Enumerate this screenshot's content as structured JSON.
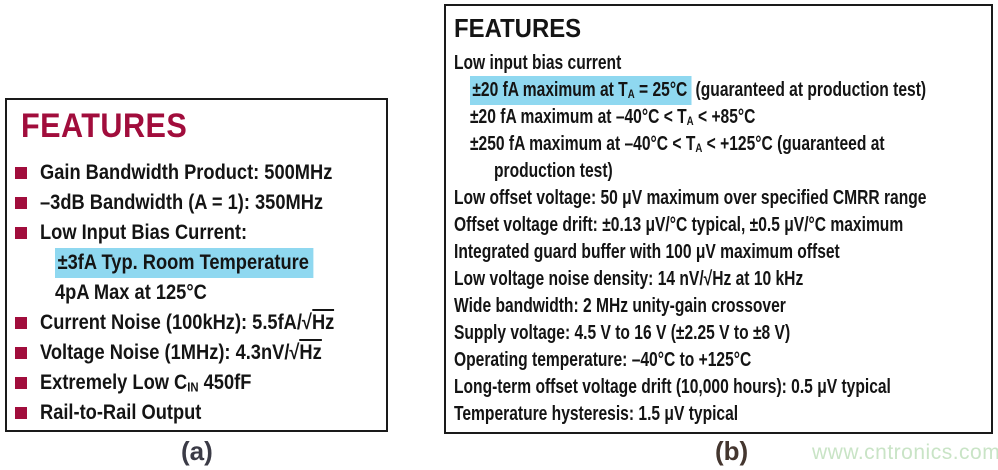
{
  "colors": {
    "accent_maroon": "#A10D3C",
    "highlight_cyan": "#8FD8F0",
    "border_black": "#1A1A1A",
    "text_black": "#141414",
    "caption_a_color": "#3B3B46",
    "caption_b_color": "#44362F",
    "watermark_green": "#C9E4C6"
  },
  "panel_a": {
    "title": "FEATURES",
    "caption": "(a)",
    "lines": [
      {
        "bullet": true,
        "segments": [
          {
            "t": "Gain Bandwidth Product: 500MHz"
          }
        ]
      },
      {
        "bullet": true,
        "segments": [
          {
            "t": "–3dB Bandwidth (A = 1): 350MHz"
          }
        ]
      },
      {
        "bullet": true,
        "segments": [
          {
            "t": "Low Input Bias Current:"
          }
        ]
      },
      {
        "indent": 1,
        "segments": [
          {
            "t": "±3fA Typ. Room Temperature",
            "hl": true
          }
        ]
      },
      {
        "indent": 1,
        "segments": [
          {
            "t": "4pA Max at 125°C"
          }
        ]
      },
      {
        "bullet": true,
        "segments": [
          {
            "t": "Current Noise (100kHz): 5.5fA/√"
          },
          {
            "t": "Hz",
            "ol": true
          }
        ]
      },
      {
        "bullet": true,
        "segments": [
          {
            "t": "Voltage Noise (1MHz): 4.3nV/√"
          },
          {
            "t": "Hz",
            "ol": true
          }
        ]
      },
      {
        "bullet": true,
        "segments": [
          {
            "t": "Extremely Low C"
          },
          {
            "t": "IN",
            "sub": true
          },
          {
            "t": " 450fF"
          }
        ]
      },
      {
        "bullet": true,
        "segments": [
          {
            "t": "Rail-to-Rail Output"
          }
        ]
      }
    ]
  },
  "panel_b": {
    "title": "FEATURES",
    "caption": "(b)",
    "lines": [
      {
        "segments": [
          {
            "t": "Low input bias current"
          }
        ]
      },
      {
        "indent": 1,
        "segments": [
          {
            "t": "±20 fA maximum at T",
            "hl": true
          },
          {
            "t": "A",
            "sub": true,
            "hl": true
          },
          {
            "t": " = 25°C",
            "hl": true
          },
          {
            "t": " (guaranteed at production test)"
          }
        ]
      },
      {
        "indent": 1,
        "segments": [
          {
            "t": "±20 fA maximum at –40°C < T"
          },
          {
            "t": "A",
            "sub": true
          },
          {
            "t": " < +85°C"
          }
        ]
      },
      {
        "indent": 1,
        "segments": [
          {
            "t": "±250 fA maximum at –40°C < T"
          },
          {
            "t": "A",
            "sub": true
          },
          {
            "t": " < +125°C (guaranteed at"
          }
        ]
      },
      {
        "indent": 2,
        "segments": [
          {
            "t": "production test)"
          }
        ]
      },
      {
        "segments": [
          {
            "t": "Low offset voltage: 50 μV maximum over specified CMRR range"
          }
        ]
      },
      {
        "segments": [
          {
            "t": "Offset voltage drift: ±0.13 μV/°C typical, ±0.5 μV/°C maximum"
          }
        ]
      },
      {
        "segments": [
          {
            "t": "Integrated guard buffer with 100 μV maximum offset"
          }
        ]
      },
      {
        "segments": [
          {
            "t": "Low voltage noise density: 14 nV/√Hz at 10 kHz"
          }
        ]
      },
      {
        "segments": [
          {
            "t": "Wide bandwidth: 2 MHz unity-gain crossover"
          }
        ]
      },
      {
        "segments": [
          {
            "t": "Supply voltage: 4.5 V to 16 V (±2.25 V to ±8 V)"
          }
        ]
      },
      {
        "segments": [
          {
            "t": "Operating temperature: –40°C to +125°C"
          }
        ]
      },
      {
        "segments": [
          {
            "t": "Long-term offset voltage drift (10,000 hours): 0.5 μV typical"
          }
        ]
      },
      {
        "segments": [
          {
            "t": "Temperature hysteresis: 1.5 μV typical"
          }
        ]
      }
    ]
  },
  "watermark": {
    "text": "www.cntronics.com"
  }
}
